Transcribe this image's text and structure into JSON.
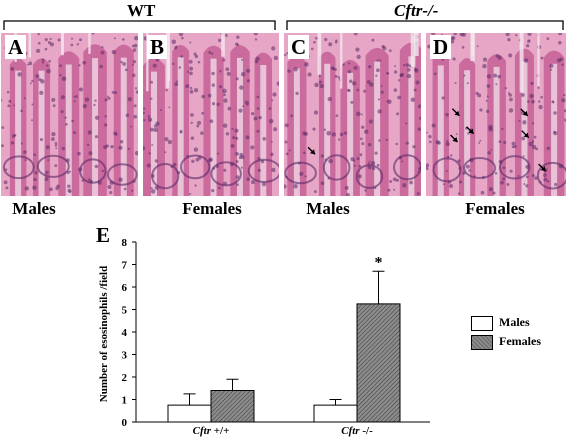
{
  "groups": [
    {
      "label": "WT",
      "italic": false
    },
    {
      "label": "Cftr-/-",
      "italic": true
    }
  ],
  "panels": [
    {
      "letter": "A",
      "caption": "Males"
    },
    {
      "letter": "B",
      "caption": "Females"
    },
    {
      "letter": "C",
      "caption": "Males"
    },
    {
      "letter": "D",
      "caption": "Females"
    }
  ],
  "tissue_colors": {
    "background": "#e7a6c6",
    "tissue": "#c55f95",
    "nuclei": "#5a2a66",
    "lumen": "#f3e8ef"
  },
  "chart_data": {
    "type": "bar",
    "panel_letter": "E",
    "categories": [
      {
        "prefix": "Cftr",
        "suffix": " +/+"
      },
      {
        "prefix": "Cftr",
        "suffix": " -/-"
      }
    ],
    "series": [
      {
        "name": "Males",
        "color": "#ffffff",
        "values": [
          0.75,
          0.75
        ],
        "errors": [
          0.5,
          0.25
        ]
      },
      {
        "name": "Females",
        "color": "#8c8c8c",
        "values": [
          1.4,
          5.25
        ],
        "errors": [
          0.5,
          1.45
        ]
      }
    ],
    "ylabel": "Number of esosinophils /field",
    "ylim": [
      0,
      8
    ],
    "yticks": [
      0,
      1,
      2,
      3,
      4,
      5,
      6,
      7,
      8
    ],
    "significance": {
      "category": 1,
      "series": 1,
      "mark": "*"
    },
    "legend_position": "right"
  }
}
